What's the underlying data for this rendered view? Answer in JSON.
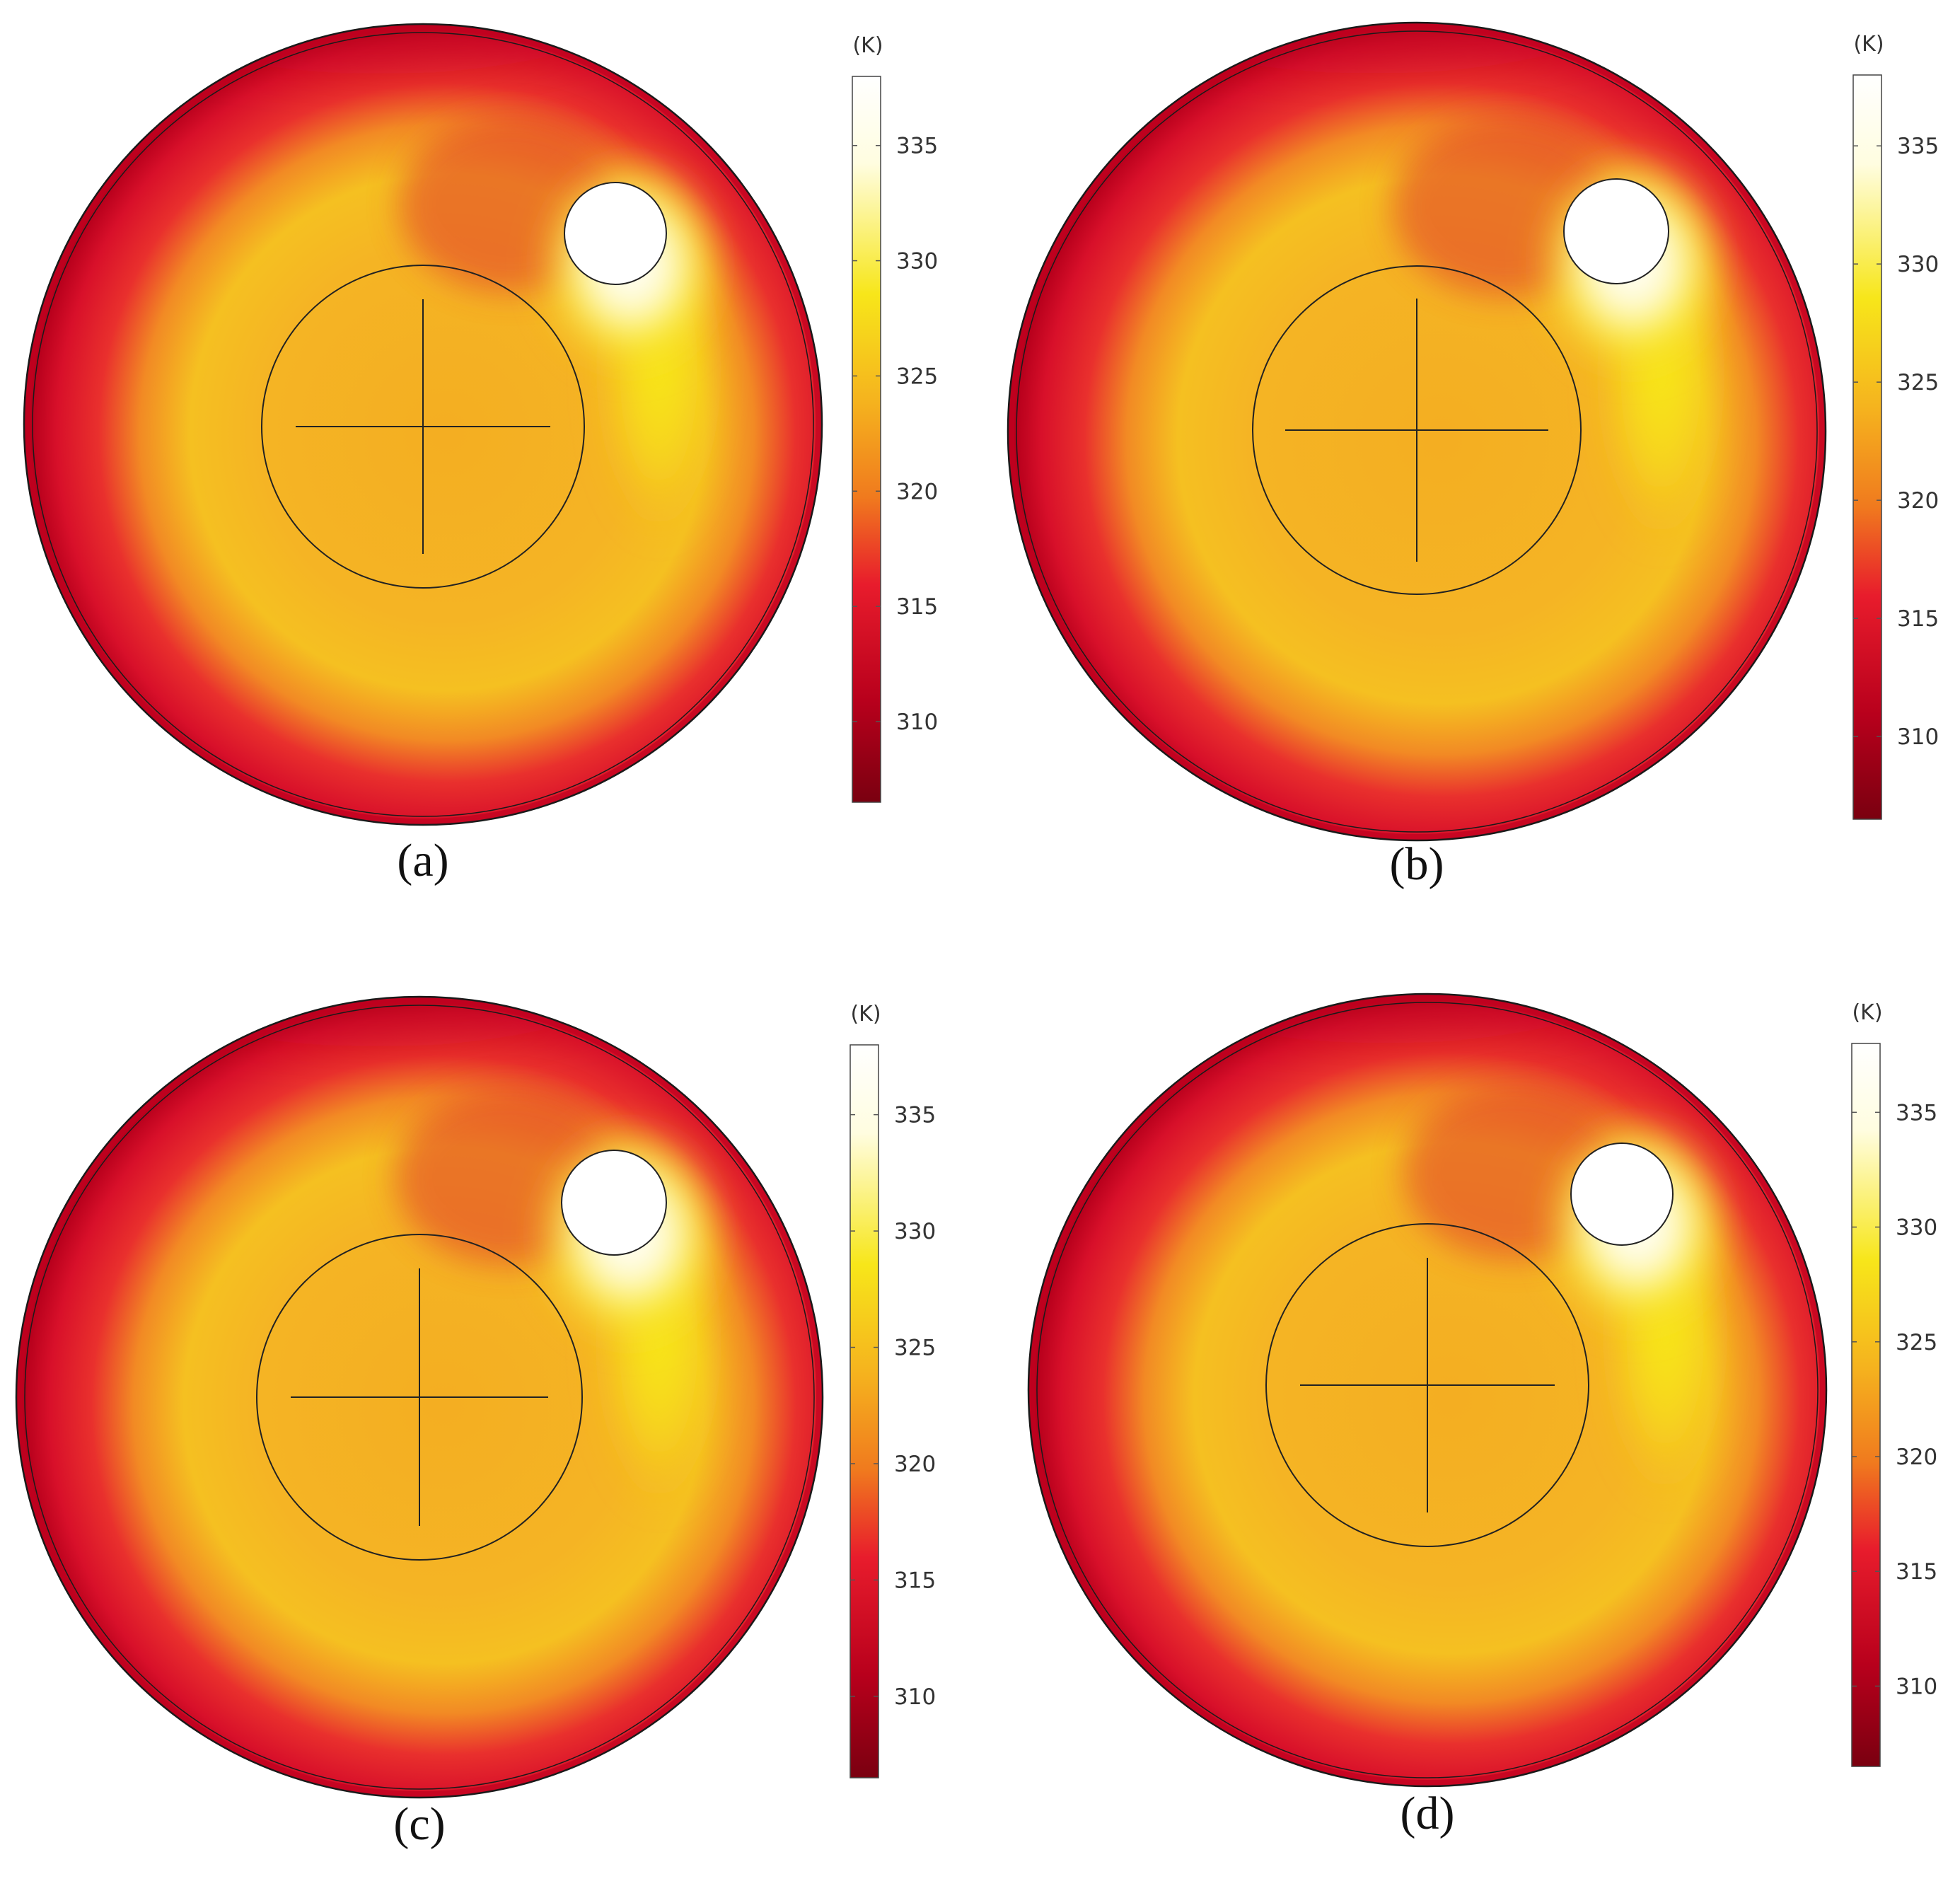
{
  "chart_data": [
    {
      "type": "heatmap",
      "panel": "(a)",
      "colorbar": {
        "unit": "(K)",
        "ticks": [
          335,
          330,
          325,
          320,
          315,
          310
        ],
        "range": [
          306.5,
          338
        ]
      }
    },
    {
      "type": "heatmap",
      "panel": "(b)",
      "colorbar": {
        "unit": "(K)",
        "ticks": [
          335,
          330,
          325,
          320,
          315,
          310
        ],
        "range": [
          306.5,
          338
        ]
      }
    },
    {
      "type": "heatmap",
      "panel": "(c)",
      "colorbar": {
        "unit": "(K)",
        "ticks": [
          335,
          330,
          325,
          320,
          315,
          310
        ],
        "range": [
          306.5,
          338
        ]
      }
    },
    {
      "type": "heatmap",
      "panel": "(d)",
      "colorbar": {
        "unit": "(K)",
        "ticks": [
          335,
          330,
          325,
          320,
          315,
          310
        ],
        "range": [
          306.5,
          338
        ]
      }
    }
  ],
  "colormap": [
    "#7a0010",
    "#b8001c",
    "#e81c2c",
    "#f07a1e",
    "#f5b21e",
    "#f7e61a",
    "#fffde0",
    "#ffffff"
  ]
}
